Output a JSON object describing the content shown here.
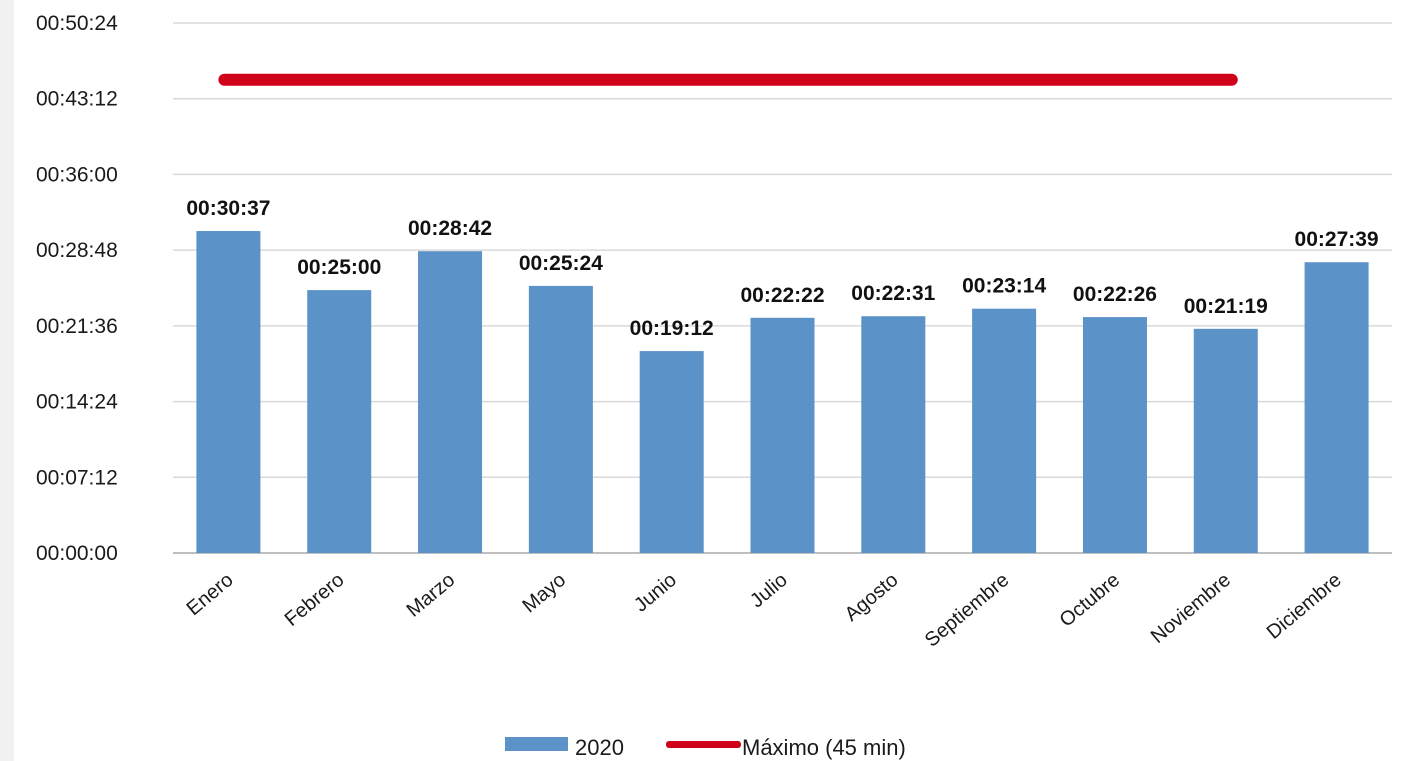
{
  "chart_data": {
    "type": "bar",
    "categories": [
      "Enero",
      "Febrero",
      "Marzo",
      "Mayo",
      "Junio",
      "Julio",
      "Agosto",
      "Septiembre",
      "Octubre",
      "Noviembre",
      "Diciembre"
    ],
    "series": [
      {
        "name": "2020",
        "type": "bar",
        "color": "#5b92c8",
        "values_seconds": [
          1837,
          1500,
          1722,
          1524,
          1152,
          1342,
          1351,
          1394,
          1346,
          1279,
          1659
        ],
        "labels": [
          "00:30:37",
          "00:25:00",
          "00:28:42",
          "00:25:24",
          "00:19:12",
          "00:22:22",
          "00:22:31",
          "00:23:14",
          "00:22:26",
          "00:21:19",
          "00:27:39"
        ]
      },
      {
        "name": "Máximo (45 min)",
        "type": "line",
        "color": "#d0021b",
        "value_seconds": 2700
      }
    ],
    "y_unit": "seconds",
    "ylim": [
      0,
      3024
    ],
    "y_ticks_seconds": [
      0,
      432,
      864,
      1296,
      1728,
      2160,
      2592,
      3024
    ],
    "y_tick_labels": [
      "00:00:00",
      "00:07:12",
      "00:14:24",
      "00:21:36",
      "00:28:48",
      "00:36:00",
      "00:43:12",
      "00:50:24"
    ],
    "grid": true,
    "legend_placement": "bottom",
    "title": "",
    "xlabel": "",
    "ylabel": ""
  }
}
